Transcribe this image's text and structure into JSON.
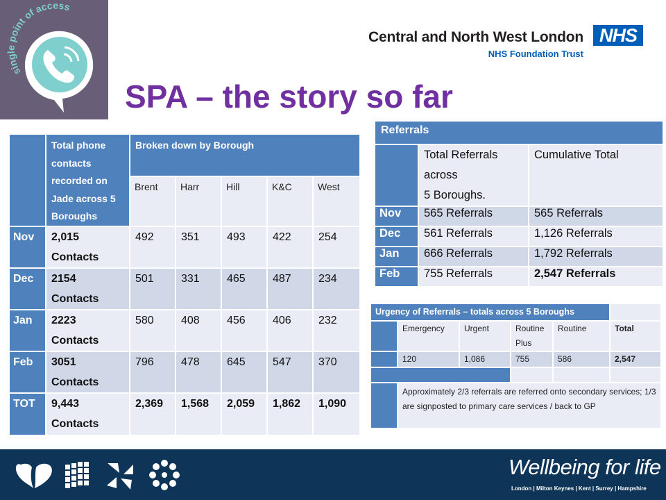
{
  "logo": {
    "ring_text": "single point of access",
    "colors": {
      "background": "#695e77",
      "accent": "#7ecfce"
    }
  },
  "header": {
    "org_name": "Central and North West London",
    "org_trust": "NHS Foundation Trust",
    "nhs_badge": "NHS",
    "title": "SPA – the story so far"
  },
  "contacts_table": {
    "total_header": "Total phone contacts recorded on Jade across 5 Boroughs",
    "borough_header": "Broken down by Borough",
    "boroughs": [
      "Brent",
      "Harr",
      "Hill",
      "K&C",
      "West"
    ],
    "rows": [
      {
        "month": "Nov",
        "total": "2,015",
        "unit": "Contacts",
        "values": [
          "492",
          "351",
          "493",
          "422",
          "254"
        ]
      },
      {
        "month": "Dec",
        "total": "2154",
        "unit": "Contacts",
        "values": [
          "501",
          "331",
          "465",
          "487",
          "234"
        ]
      },
      {
        "month": "Jan",
        "total": "2223",
        "unit": "Contacts",
        "values": [
          "580",
          "408",
          "456",
          "406",
          "232"
        ]
      },
      {
        "month": "Feb",
        "total": "3051",
        "unit": "Contacts",
        "values": [
          "796",
          "478",
          "645",
          "547",
          "370"
        ]
      },
      {
        "month": "TOT",
        "total": "9,443",
        "unit": "Contacts",
        "values": [
          "2,369",
          "1,568",
          "2,059",
          "1,862",
          "1,090"
        ]
      }
    ]
  },
  "referrals_table": {
    "caption": "Referrals",
    "col1_header": [
      "Total Referrals",
      "across",
      "5 Boroughs."
    ],
    "col2_header": "Cumulative Total",
    "rows": [
      {
        "month": "Nov",
        "total": "565 Referrals",
        "cumulative": "565 Referrals"
      },
      {
        "month": "Dec",
        "total": "561 Referrals",
        "cumulative": "1,126 Referrals"
      },
      {
        "month": "Jan",
        "total": "666 Referrals",
        "cumulative": "1,792 Referrals"
      },
      {
        "month": "Feb",
        "total": "755 Referrals",
        "cumulative": "2,547 Referrals"
      }
    ]
  },
  "urgency_table": {
    "caption": "Urgency of Referrals – totals across 5 Boroughs",
    "headers": [
      "Emergency",
      "Urgent",
      "Routine Plus",
      "Routine",
      "Total"
    ],
    "values": [
      "120",
      "1,086",
      "755",
      "586",
      "2,547"
    ],
    "note": "Approximately 2/3 referrals  are referred onto secondary services; 1/3 are signposted to primary care services / back to GP"
  },
  "footer": {
    "tagline": "Wellbeing for life",
    "places": "London | Milton Keynes | Kent | Surrey | Hampshire",
    "icons": [
      "heart-icon",
      "dots-icon",
      "petals-icon",
      "flower-ring-icon"
    ]
  }
}
